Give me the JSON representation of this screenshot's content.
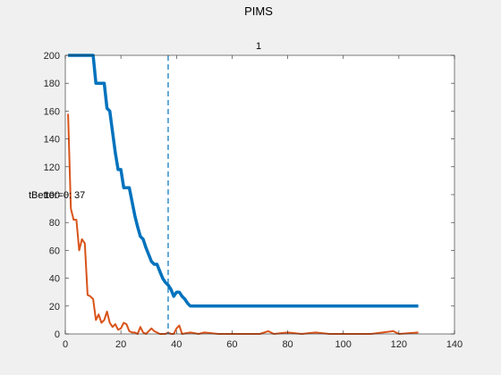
{
  "figure_title": "PIMS",
  "chart_data": {
    "type": "line",
    "title": "1",
    "xlabel": "",
    "ylabel": "",
    "xlim": [
      0,
      140
    ],
    "ylim": [
      0,
      200
    ],
    "x_ticks": [
      0,
      20,
      40,
      60,
      80,
      100,
      120,
      140
    ],
    "y_ticks": [
      0,
      20,
      40,
      60,
      80,
      100,
      120,
      140,
      160,
      180,
      200
    ],
    "grid": false,
    "vertical_line": {
      "x": 37,
      "style": "dashed",
      "color": "#0072bd"
    },
    "annotations": [
      {
        "text": "tBetter=0: 37",
        "x": 0,
        "y": 100
      }
    ],
    "series": [
      {
        "color": "#0072bd",
        "line_width": "thick",
        "x": [
          1,
          10,
          11,
          14,
          15,
          16,
          17,
          18,
          19,
          20,
          21,
          22,
          23,
          24,
          25,
          26,
          27,
          28,
          29,
          30,
          31,
          32,
          33,
          34,
          35,
          36,
          37,
          38,
          39,
          40,
          41,
          42,
          43,
          44,
          45,
          60,
          80,
          100,
          120,
          127
        ],
        "y": [
          200,
          200,
          180,
          180,
          162,
          160,
          145,
          130,
          118,
          118,
          105,
          105,
          105,
          95,
          85,
          77,
          70,
          68,
          62,
          57,
          52,
          50,
          50,
          45,
          40,
          37,
          35,
          32,
          27,
          30,
          30,
          27,
          25,
          22,
          20,
          20,
          20,
          20,
          20,
          20
        ]
      },
      {
        "color": "#d95319",
        "line_width": "normal",
        "x": [
          1,
          2,
          3,
          4,
          5,
          6,
          7,
          8,
          9,
          10,
          11,
          12,
          13,
          14,
          15,
          16,
          17,
          18,
          19,
          20,
          21,
          22,
          23,
          24,
          25,
          26,
          27,
          28,
          29,
          30,
          31,
          32,
          33,
          34,
          35,
          36,
          37,
          38,
          39,
          40,
          41,
          42,
          45,
          48,
          50,
          55,
          60,
          70,
          73,
          75,
          80,
          85,
          90,
          95,
          100,
          110,
          118,
          120,
          127
        ],
        "y": [
          158,
          90,
          82,
          82,
          60,
          68,
          65,
          28,
          27,
          25,
          10,
          14,
          8,
          10,
          16,
          8,
          5,
          7,
          3,
          4,
          8,
          7,
          2,
          1,
          1,
          0,
          5,
          1,
          0,
          2,
          4,
          2,
          1,
          0,
          0,
          0,
          1,
          0,
          0,
          4,
          6,
          0,
          1,
          0,
          1,
          0,
          0,
          0,
          2,
          0,
          1,
          0,
          1,
          0,
          0,
          0,
          2,
          0,
          1
        ]
      }
    ]
  }
}
